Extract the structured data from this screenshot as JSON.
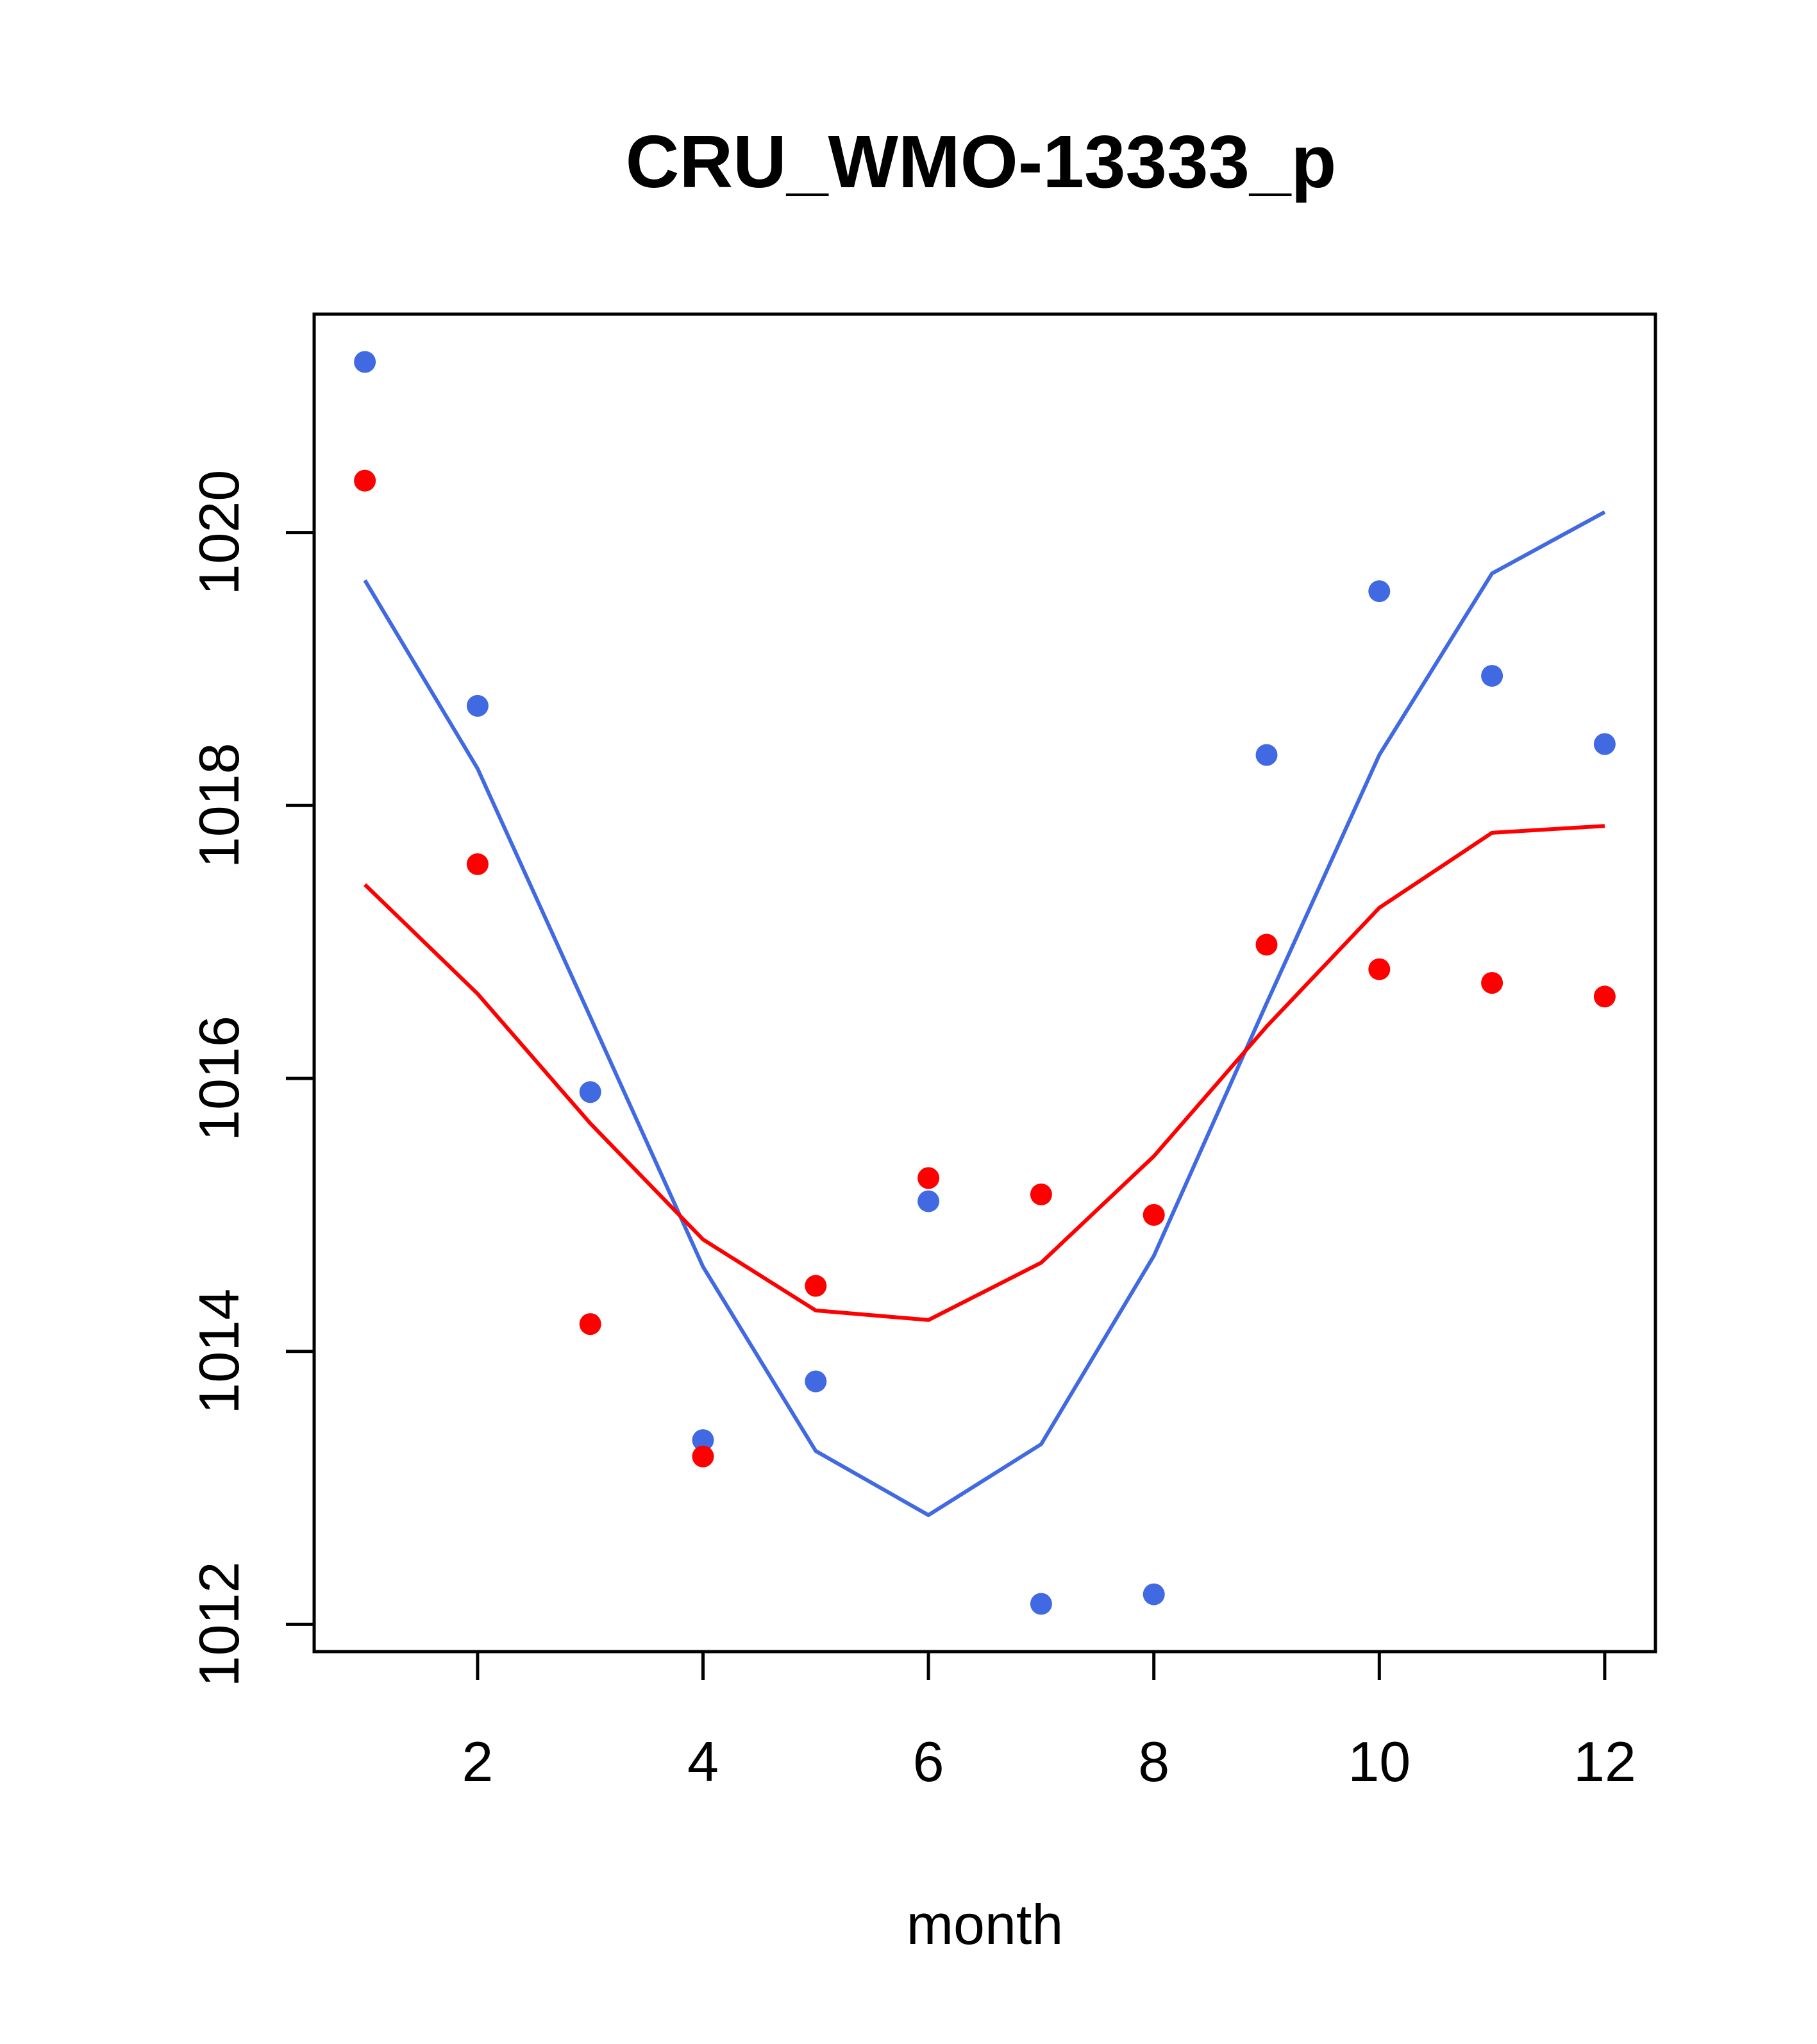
{
  "chart_data": {
    "type": "line",
    "title": "CRU_WMO-13333_p",
    "xlabel": "month",
    "ylabel": "",
    "xlim": [
      0.55,
      12.45
    ],
    "ylim": [
      1011.8,
      1021.6
    ],
    "x_ticks": [
      2,
      4,
      6,
      8,
      10,
      12
    ],
    "x_tick_labels": [
      "2",
      "4",
      "6",
      "8",
      "10",
      "12"
    ],
    "y_ticks": [
      1012,
      1014,
      1016,
      1018,
      1020
    ],
    "y_tick_labels": [
      "1012",
      "1014",
      "1016",
      "1018",
      "1020"
    ],
    "grid": false,
    "x": [
      1,
      2,
      3,
      4,
      5,
      6,
      7,
      8,
      9,
      10,
      11,
      12
    ],
    "series": [
      {
        "name": "blue points",
        "kind": "scatter",
        "color": "#4169E1",
        "values": [
          1021.25,
          1018.73,
          1015.9,
          1013.35,
          1013.78,
          1015.1,
          1012.15,
          1012.22,
          1018.37,
          1019.57,
          1018.95,
          1018.45
        ]
      },
      {
        "name": "red points",
        "kind": "scatter",
        "color": "#FF0000",
        "values": [
          1020.38,
          1017.57,
          1014.2,
          1013.23,
          1014.48,
          1015.27,
          1015.15,
          1015.0,
          1016.98,
          1016.8,
          1016.7,
          1016.6
        ]
      },
      {
        "name": "blue line",
        "kind": "line",
        "color": "#4169E1",
        "values": [
          1019.65,
          1018.27,
          1016.45,
          1014.62,
          1013.27,
          1012.8,
          1013.32,
          1014.7,
          1016.55,
          1018.37,
          1019.7,
          1020.15
        ]
      },
      {
        "name": "red line",
        "kind": "line",
        "color": "#FF0000",
        "values": [
          1017.42,
          1016.62,
          1015.67,
          1014.82,
          1014.3,
          1014.23,
          1014.65,
          1015.43,
          1016.38,
          1017.25,
          1017.8,
          1017.85
        ]
      }
    ]
  }
}
